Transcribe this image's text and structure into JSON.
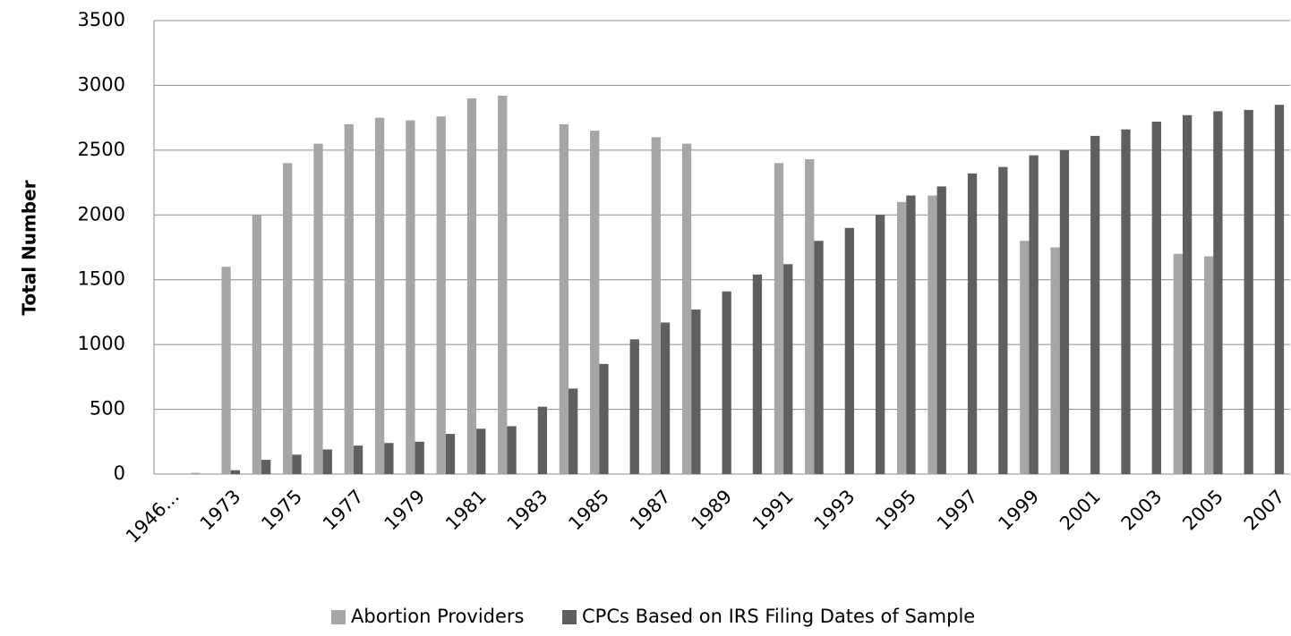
{
  "chart_data": {
    "type": "bar",
    "y_label": "Total Number",
    "categories": [
      "1946...",
      null,
      "1973",
      null,
      "1975",
      null,
      "1977",
      null,
      "1979",
      null,
      "1981",
      null,
      "1983",
      null,
      "1985",
      null,
      "1987",
      null,
      "1989",
      null,
      "1991",
      null,
      "1993",
      null,
      "1995",
      null,
      "1997",
      null,
      "1999",
      null,
      "2001",
      null,
      "2003",
      null,
      "2005",
      null,
      "2007"
    ],
    "series": [
      {
        "name": "Abortion Providers",
        "color": "#a6a6a6",
        "values": [
          null,
          10,
          1600,
          2000,
          2400,
          2550,
          2700,
          2750,
          2730,
          2760,
          2900,
          2920,
          null,
          2700,
          2650,
          null,
          2600,
          2550,
          null,
          null,
          2400,
          2430,
          null,
          null,
          2100,
          2150,
          null,
          null,
          1800,
          1750,
          null,
          null,
          null,
          1700,
          1680,
          null,
          null
        ]
      },
      {
        "name": "CPCs Based on IRS Filing Dates of Sample",
        "color": "#5f5f5f",
        "values": [
          null,
          null,
          30,
          110,
          150,
          190,
          220,
          240,
          250,
          310,
          350,
          370,
          520,
          660,
          850,
          1040,
          1170,
          1270,
          1410,
          1540,
          1620,
          1800,
          1900,
          2000,
          2150,
          2220,
          2320,
          2370,
          2460,
          2500,
          2610,
          2660,
          2720,
          2770,
          2800,
          2810,
          2850
        ]
      }
    ],
    "ylim": [
      0,
      3500
    ],
    "yticks": [
      0,
      500,
      1000,
      1500,
      2000,
      2500,
      3000,
      3500
    ],
    "grid": true,
    "legend": "bottom"
  }
}
